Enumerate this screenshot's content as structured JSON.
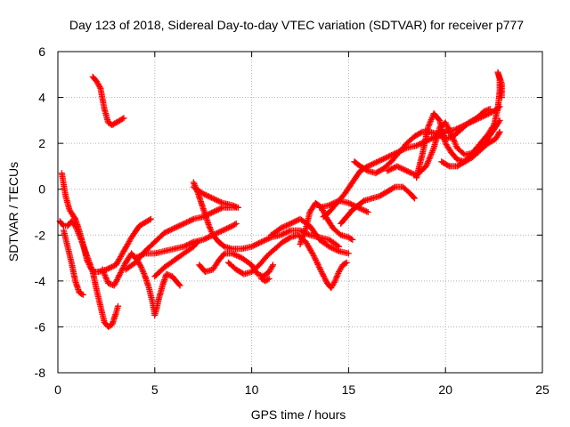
{
  "colors": {
    "series": "#ff0000",
    "axis": "#000000",
    "grid": "#b0b0b0"
  },
  "chart_data": {
    "type": "scatter",
    "title": "Day 123 of 2018, Sidereal Day-to-day VTEC variation (SDTVAR) for receiver p777",
    "xlabel": "GPS time / hours",
    "ylabel": "SDTVAR / TECUs",
    "xlim": [
      0,
      25
    ],
    "ylim": [
      -8,
      6
    ],
    "xticks": [
      0,
      5,
      10,
      15,
      20,
      25
    ],
    "yticks": [
      -8,
      -6,
      -4,
      -2,
      0,
      2,
      4,
      6
    ],
    "grid": true,
    "marker": "+",
    "series": [
      {
        "name": "SDTVAR",
        "segments": [
          [
            [
              1.8,
              4.9
            ],
            [
              2.0,
              4.7
            ],
            [
              2.2,
              4.4
            ],
            [
              2.4,
              3.5
            ],
            [
              2.6,
              2.9
            ],
            [
              2.8,
              2.8
            ],
            [
              3.0,
              2.9
            ],
            [
              3.2,
              3.0
            ],
            [
              3.4,
              3.1
            ]
          ],
          [
            [
              0.2,
              0.7
            ],
            [
              0.3,
              0.2
            ],
            [
              0.4,
              -0.3
            ],
            [
              0.6,
              -0.9
            ],
            [
              0.9,
              -1.3
            ],
            [
              1.1,
              -1.8
            ],
            [
              1.3,
              -2.4
            ],
            [
              1.5,
              -3.1
            ],
            [
              1.8,
              -3.6
            ],
            [
              2.1,
              -3.6
            ],
            [
              2.5,
              -3.5
            ],
            [
              3.0,
              -3.3
            ],
            [
              3.4,
              -2.7
            ],
            [
              3.8,
              -2.1
            ],
            [
              4.2,
              -1.6
            ],
            [
              4.6,
              -1.4
            ],
            [
              4.8,
              -1.3
            ]
          ],
          [
            [
              0.1,
              -1.4
            ],
            [
              0.3,
              -1.6
            ],
            [
              0.5,
              -1.6
            ],
            [
              0.7,
              -1.4
            ],
            [
              0.9,
              -1.6
            ],
            [
              1.2,
              -2.2
            ],
            [
              1.5,
              -2.9
            ],
            [
              1.8,
              -3.6
            ],
            [
              2.0,
              -4.4
            ],
            [
              2.2,
              -5.1
            ],
            [
              2.4,
              -5.8
            ],
            [
              2.6,
              -6.0
            ],
            [
              2.8,
              -5.9
            ],
            [
              3.0,
              -5.4
            ],
            [
              3.1,
              -5.1
            ]
          ],
          [
            [
              0.3,
              -1.8
            ],
            [
              0.5,
              -2.5
            ],
            [
              0.7,
              -3.2
            ],
            [
              0.9,
              -4.0
            ],
            [
              1.1,
              -4.5
            ],
            [
              1.3,
              -4.6
            ]
          ],
          [
            [
              2.3,
              -3.5
            ],
            [
              2.6,
              -4.1
            ],
            [
              2.9,
              -4.2
            ],
            [
              3.2,
              -3.7
            ],
            [
              3.5,
              -3.2
            ],
            [
              3.8,
              -2.8
            ],
            [
              4.1,
              -3.1
            ],
            [
              4.3,
              -3.4
            ],
            [
              4.5,
              -3.8
            ],
            [
              4.7,
              -4.3
            ],
            [
              4.9,
              -5.0
            ],
            [
              5.0,
              -5.5
            ],
            [
              5.1,
              -5.2
            ],
            [
              5.2,
              -4.8
            ],
            [
              5.4,
              -4.2
            ],
            [
              5.6,
              -3.7
            ],
            [
              5.9,
              -3.8
            ],
            [
              6.1,
              -4.0
            ],
            [
              6.3,
              -4.2
            ]
          ],
          [
            [
              4.0,
              -3.0
            ],
            [
              4.5,
              -2.8
            ],
            [
              5.0,
              -2.8
            ],
            [
              5.5,
              -2.7
            ],
            [
              6.0,
              -2.6
            ],
            [
              6.5,
              -2.5
            ],
            [
              7.0,
              -2.3
            ],
            [
              7.5,
              -2.2
            ],
            [
              8.0,
              -2.0
            ],
            [
              8.5,
              -1.8
            ],
            [
              9.0,
              -1.6
            ],
            [
              9.2,
              -1.5
            ]
          ],
          [
            [
              3.5,
              -3.5
            ],
            [
              4.0,
              -3.2
            ],
            [
              4.5,
              -2.7
            ],
            [
              5.0,
              -2.3
            ],
            [
              5.5,
              -1.9
            ],
            [
              6.0,
              -1.7
            ],
            [
              6.5,
              -1.5
            ],
            [
              7.0,
              -1.3
            ],
            [
              7.5,
              -1.2
            ],
            [
              8.0,
              -1.0
            ],
            [
              8.5,
              -0.8
            ],
            [
              9.0,
              -0.8
            ],
            [
              9.2,
              -0.8
            ]
          ],
          [
            [
              5.0,
              -3.8
            ],
            [
              5.5,
              -3.4
            ],
            [
              6.0,
              -3.1
            ],
            [
              6.5,
              -2.8
            ],
            [
              7.0,
              -2.5
            ],
            [
              7.2,
              -2.3
            ]
          ],
          [
            [
              7.0,
              0.3
            ],
            [
              7.2,
              -0.1
            ],
            [
              7.4,
              -0.6
            ],
            [
              7.6,
              -1.1
            ],
            [
              7.8,
              -1.6
            ],
            [
              8.0,
              -2.0
            ],
            [
              8.3,
              -2.3
            ],
            [
              8.6,
              -2.5
            ],
            [
              9.0,
              -2.6
            ],
            [
              9.5,
              -2.6
            ],
            [
              10.0,
              -2.5
            ],
            [
              10.5,
              -2.3
            ],
            [
              11.0,
              -2.1
            ],
            [
              11.5,
              -2.0
            ],
            [
              12.0,
              -1.8
            ],
            [
              12.5,
              -1.8
            ],
            [
              13.0,
              -2.0
            ],
            [
              13.5,
              -2.1
            ],
            [
              14.0,
              -2.2
            ],
            [
              14.5,
              -2.5
            ]
          ],
          [
            [
              7.0,
              0.1
            ],
            [
              7.5,
              -0.2
            ],
            [
              8.0,
              -0.4
            ],
            [
              8.5,
              -0.6
            ],
            [
              9.0,
              -0.7
            ],
            [
              9.3,
              -0.8
            ]
          ],
          [
            [
              7.3,
              -3.3
            ],
            [
              7.6,
              -3.6
            ],
            [
              8.0,
              -3.5
            ],
            [
              8.3,
              -3.1
            ],
            [
              8.6,
              -2.8
            ],
            [
              9.0,
              -2.8
            ],
            [
              9.5,
              -3.0
            ],
            [
              10.0,
              -3.3
            ],
            [
              10.3,
              -3.7
            ],
            [
              10.6,
              -3.8
            ],
            [
              10.9,
              -3.6
            ],
            [
              11.1,
              -3.3
            ]
          ],
          [
            [
              8.8,
              -3.2
            ],
            [
              9.2,
              -3.5
            ],
            [
              9.6,
              -3.7
            ],
            [
              10.0,
              -3.6
            ],
            [
              10.4,
              -3.3
            ],
            [
              10.8,
              -2.9
            ],
            [
              11.2,
              -2.6
            ],
            [
              11.6,
              -2.3
            ],
            [
              12.0,
              -2.1
            ],
            [
              12.4,
              -2.0
            ],
            [
              12.8,
              -2.3
            ],
            [
              13.2,
              -2.9
            ],
            [
              13.6,
              -3.6
            ],
            [
              13.9,
              -4.1
            ],
            [
              14.1,
              -4.3
            ],
            [
              14.3,
              -4.0
            ],
            [
              14.5,
              -3.6
            ],
            [
              14.7,
              -3.3
            ],
            [
              14.9,
              -3.2
            ]
          ],
          [
            [
              10.5,
              -3.9
            ],
            [
              10.7,
              -4.0
            ],
            [
              10.9,
              -3.9
            ]
          ],
          [
            [
              11.0,
              -2.0
            ],
            [
              11.5,
              -1.7
            ],
            [
              12.0,
              -1.5
            ],
            [
              12.5,
              -1.3
            ],
            [
              13.0,
              -1.6
            ],
            [
              13.5,
              -2.2
            ],
            [
              14.0,
              -2.5
            ],
            [
              14.5,
              -2.7
            ],
            [
              15.0,
              -2.8
            ]
          ],
          [
            [
              12.5,
              -2.4
            ],
            [
              12.8,
              -1.7
            ],
            [
              13.0,
              -1.0
            ],
            [
              13.3,
              -0.6
            ],
            [
              13.6,
              -0.8
            ],
            [
              13.9,
              -1.3
            ],
            [
              14.2,
              -1.7
            ],
            [
              14.6,
              -2.0
            ],
            [
              15.0,
              -2.1
            ],
            [
              15.2,
              -2.2
            ]
          ],
          [
            [
              13.5,
              -0.8
            ],
            [
              14.0,
              -0.7
            ],
            [
              14.5,
              -0.5
            ],
            [
              15.0,
              -0.6
            ],
            [
              15.5,
              -0.8
            ],
            [
              16.0,
              -1.0
            ]
          ],
          [
            [
              13.7,
              -1.2
            ],
            [
              14.0,
              -1.0
            ],
            [
              14.4,
              -0.6
            ],
            [
              14.8,
              -0.2
            ],
            [
              15.2,
              0.3
            ],
            [
              15.6,
              0.8
            ],
            [
              16.0,
              1.0
            ],
            [
              16.5,
              1.2
            ],
            [
              17.0,
              1.4
            ],
            [
              17.5,
              1.6
            ],
            [
              18.0,
              1.8
            ],
            [
              18.5,
              1.9
            ],
            [
              19.0,
              2.1
            ],
            [
              19.5,
              2.3
            ],
            [
              20.0,
              2.5
            ],
            [
              20.5,
              2.6
            ],
            [
              21.0,
              2.8
            ],
            [
              21.5,
              3.0
            ],
            [
              22.0,
              3.2
            ],
            [
              22.5,
              3.4
            ],
            [
              22.8,
              3.6
            ]
          ],
          [
            [
              14.6,
              -1.5
            ],
            [
              14.9,
              -1.2
            ],
            [
              15.2,
              -0.9
            ],
            [
              15.5,
              -0.7
            ],
            [
              15.8,
              -0.5
            ],
            [
              16.2,
              -0.4
            ],
            [
              16.6,
              -0.3
            ],
            [
              17.0,
              -0.1
            ],
            [
              17.4,
              0.1
            ],
            [
              17.8,
              0.1
            ],
            [
              18.2,
              -0.2
            ],
            [
              18.4,
              -0.4
            ]
          ],
          [
            [
              15.3,
              1.2
            ],
            [
              15.6,
              1.0
            ],
            [
              16.0,
              0.8
            ],
            [
              16.4,
              0.7
            ],
            [
              16.8,
              0.9
            ],
            [
              17.2,
              1.2
            ],
            [
              17.6,
              1.6
            ],
            [
              18.0,
              2.0
            ],
            [
              18.4,
              2.3
            ],
            [
              18.8,
              2.5
            ],
            [
              19.2,
              2.5
            ],
            [
              19.6,
              2.4
            ],
            [
              20.0,
              2.2
            ],
            [
              20.4,
              2.3
            ],
            [
              20.8,
              2.6
            ],
            [
              21.2,
              2.9
            ],
            [
              21.6,
              3.1
            ],
            [
              22.0,
              3.4
            ],
            [
              22.3,
              3.5
            ]
          ],
          [
            [
              17.0,
              0.8
            ],
            [
              17.5,
              1.0
            ],
            [
              18.0,
              0.8
            ],
            [
              18.5,
              0.6
            ],
            [
              19.0,
              1.0
            ],
            [
              19.4,
              1.8
            ],
            [
              19.7,
              2.7
            ],
            [
              20.0,
              2.9
            ],
            [
              20.3,
              2.4
            ],
            [
              20.6,
              1.8
            ],
            [
              21.0,
              1.5
            ],
            [
              21.5,
              1.6
            ],
            [
              22.0,
              2.0
            ],
            [
              22.5,
              2.6
            ],
            [
              22.8,
              3.0
            ]
          ],
          [
            [
              18.5,
              0.5
            ],
            [
              18.8,
              1.5
            ],
            [
              19.1,
              2.7
            ],
            [
              19.4,
              3.3
            ],
            [
              19.7,
              3.0
            ],
            [
              20.0,
              2.0
            ],
            [
              20.3,
              1.6
            ],
            [
              20.6,
              1.3
            ],
            [
              21.0,
              1.2
            ],
            [
              21.4,
              1.4
            ],
            [
              21.8,
              1.7
            ],
            [
              22.2,
              2.0
            ],
            [
              22.6,
              2.2
            ],
            [
              22.8,
              2.5
            ]
          ],
          [
            [
              19.8,
              1.2
            ],
            [
              20.2,
              1.0
            ],
            [
              20.6,
              1.0
            ],
            [
              21.0,
              1.2
            ],
            [
              21.4,
              1.6
            ],
            [
              21.8,
              2.0
            ],
            [
              22.2,
              2.4
            ],
            [
              22.5,
              2.8
            ],
            [
              22.7,
              3.5
            ],
            [
              22.8,
              4.3
            ],
            [
              22.8,
              4.8
            ],
            [
              22.7,
              5.1
            ],
            [
              22.9,
              4.6
            ],
            [
              22.9,
              4.0
            ]
          ]
        ]
      }
    ]
  }
}
